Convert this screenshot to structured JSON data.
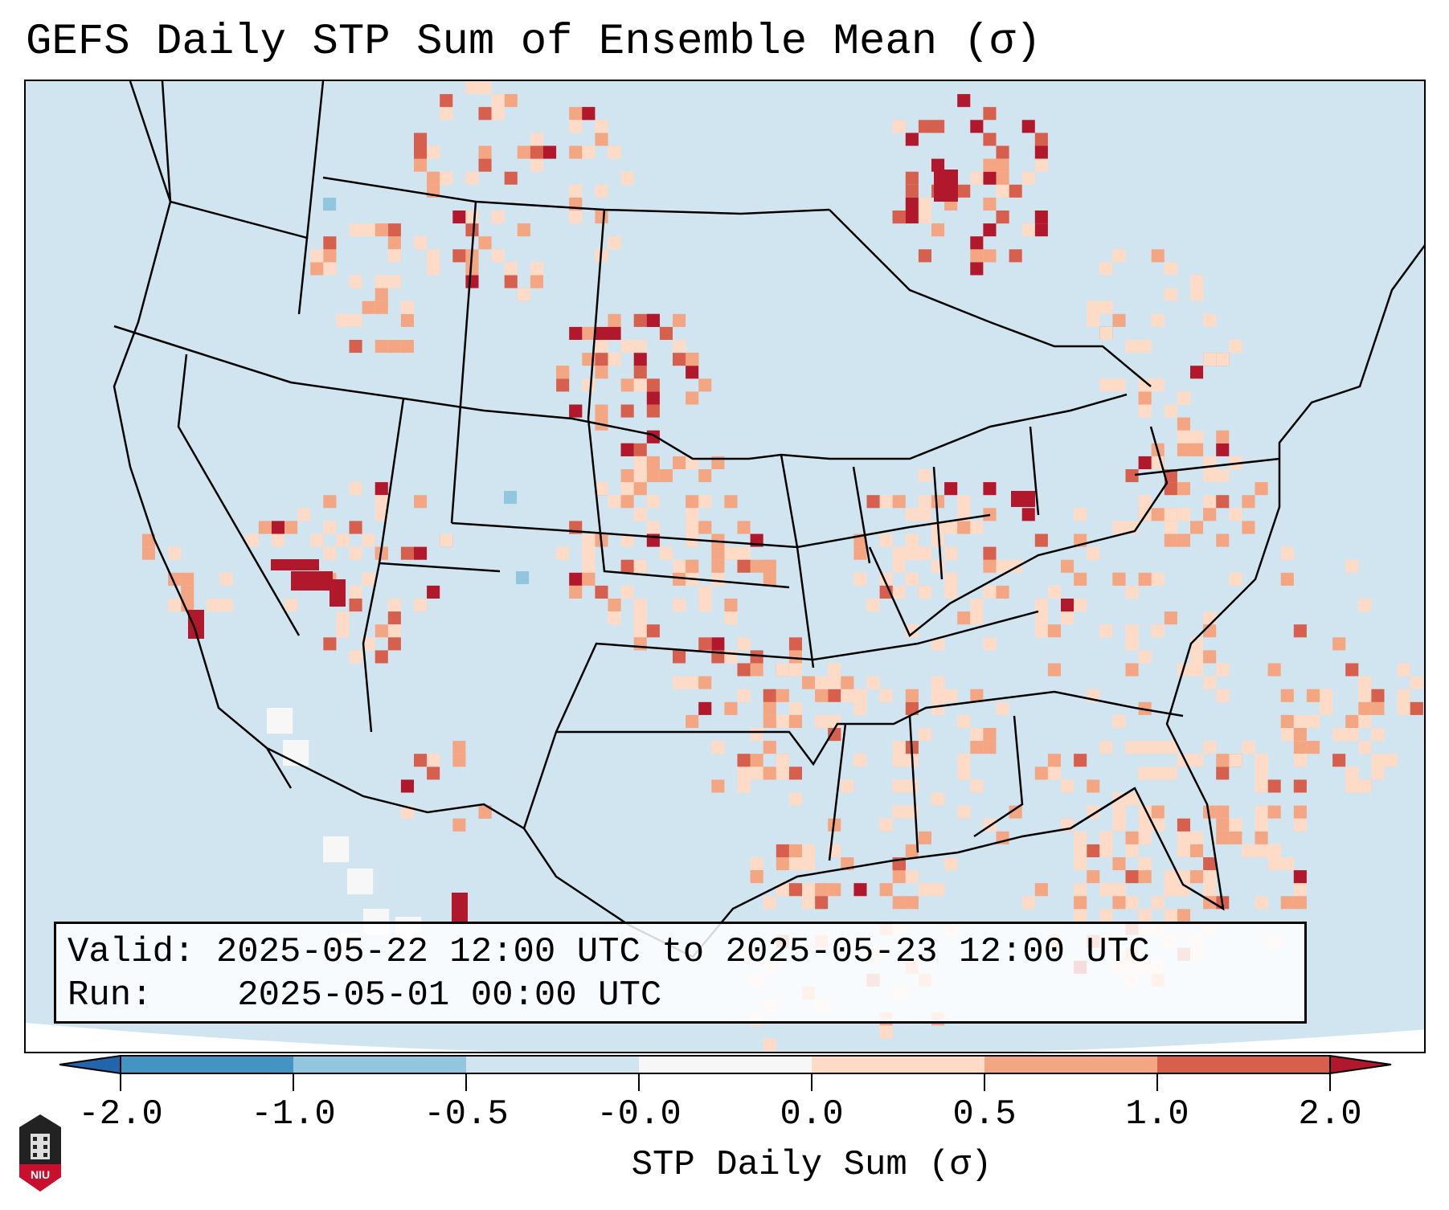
{
  "title": "GEFS Daily STP Sum of Ensemble Mean (σ)",
  "info": {
    "valid_label": "Valid:",
    "valid_value": "2025-05-22 12:00 UTC to 2025-05-23 12:00 UTC",
    "run_label": "Run:",
    "run_value": "2025-05-01 00:00 UTC"
  },
  "logo_text": "NIU",
  "chart_data": {
    "type": "heatmap",
    "title": "GEFS Daily STP Sum of Ensemble Mean (σ)",
    "colorbar": {
      "label": "STP Daily Sum (σ)",
      "ticks": [
        "-2.0",
        "-1.0",
        "-0.5",
        "-0.0",
        "0.0",
        "0.5",
        "1.0",
        "2.0"
      ],
      "bounds": [
        -2.0,
        -1.0,
        -0.5,
        -0.0,
        0.0,
        0.5,
        1.0,
        2.0
      ],
      "colors": [
        "#4393c3",
        "#92c5de",
        "#d1e5f0",
        "#f7f7f7",
        "#fddbc7",
        "#f4a582",
        "#d6604d"
      ],
      "extend_low_color": "#2166ac",
      "extend_high_color": "#b2182b",
      "extend": "both"
    },
    "region": "Continental United States, northern Mexico, southern Canada",
    "background_value_range": [
      -0.5,
      0.0
    ],
    "notable_high_areas": [
      "Southern Nevada / SW Utah",
      "Western South Dakota",
      "Northern Ontario",
      "Montana",
      "Texas/Oklahoma",
      "Atlantic coast & Gulf of Mexico"
    ]
  }
}
